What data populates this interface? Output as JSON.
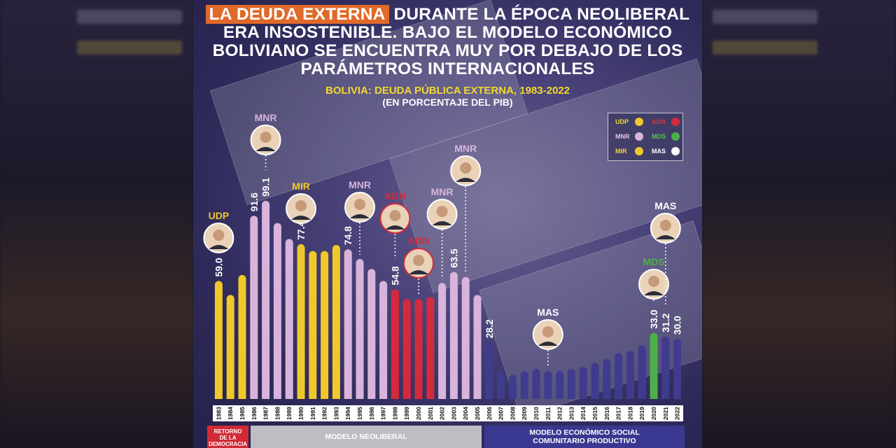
{
  "headline": {
    "highlight": "LA DEUDA EXTERNA",
    "line1_rest": " DURANTE LA ÉPOCA NEOLIBERAL",
    "line2": "ERA INSOSTENIBLE. BAJO EL MODELO ECONÓMICO",
    "line3": "BOLIVIANO SE ENCUENTRA MUY POR DEBAJO DE LOS",
    "line4": "PARÁMETROS INTERNACIONALES"
  },
  "colors": {
    "UDP": "#f0c82a",
    "MIR": "#f0c82a",
    "MNR": "#d8b4dc",
    "ADN": "#d42a3c",
    "MDS": "#4cb04a",
    "MAS": "#3f3c8e",
    "accent_orange": "#e06a2a",
    "title_yellow": "#f3d82c"
  },
  "legend": [
    {
      "name": "UDP",
      "dot": "#f0c82a",
      "text_color": "#f3d82c"
    },
    {
      "name": "ADN",
      "dot": "#d42a3c",
      "text_color": "#e0303f"
    },
    {
      "name": "MNR",
      "dot": "#d8b4dc",
      "text_color": "#e2c4e6"
    },
    {
      "name": "MDS",
      "dot": "#4cb04a",
      "text_color": "#56c256"
    },
    {
      "name": "MIR",
      "dot": "#f0c82a",
      "text_color": "#f3d82c"
    },
    {
      "name": "MAS",
      "dot": "#ffffff",
      "text_color": "#ffffff"
    }
  ],
  "eras": {
    "retorno": [
      "RETORNO",
      "DE LA",
      "DEMOCRACIA"
    ],
    "neoliberal": "MODELO NEOLIBERAL",
    "social": [
      "MODELO ECONÓMICO SOCIAL",
      "COMUNITARIO PRODUCTIVO"
    ]
  },
  "chart_data": {
    "type": "bar",
    "title": "BOLIVIA: DEUDA PÚBLICA EXTERNA, 1983-2022",
    "subtitle": "(EN PORCENTAJE DEL PIB)",
    "ylim": [
      0,
      105
    ],
    "categories": [
      "1983",
      "1984",
      "1985",
      "1986",
      "1987",
      "1988",
      "1989",
      "1990",
      "1991",
      "1992",
      "1993",
      "1994",
      "1995",
      "1996",
      "1997",
      "1998",
      "1999",
      "2000",
      "2001",
      "2002",
      "2003",
      "2004",
      "2005",
      "2006",
      "2007",
      "2008",
      "2009",
      "2010",
      "2011",
      "2012",
      "2013",
      "2014",
      "2015",
      "2016",
      "2017",
      "2018",
      "2019",
      "2020",
      "2021",
      "2022"
    ],
    "values": [
      59.0,
      52,
      62,
      91.6,
      99.1,
      88,
      80,
      77.4,
      74,
      74,
      77,
      74.8,
      70,
      65,
      59,
      54.8,
      50,
      50,
      51,
      58,
      63.5,
      61,
      52,
      28.2,
      14,
      12,
      14,
      15,
      14,
      14,
      15,
      16,
      18,
      20,
      23,
      24,
      27,
      33.0,
      31.2,
      30.0
    ],
    "party": [
      "UDP",
      "UDP",
      "UDP",
      "MNR",
      "MNR",
      "MNR",
      "MNR",
      "MIR",
      "MIR",
      "MIR",
      "MIR",
      "MNR",
      "MNR",
      "MNR",
      "MNR",
      "ADN",
      "ADN",
      "ADN",
      "ADN",
      "MNR",
      "MNR",
      "MNR",
      "MNR",
      "MAS",
      "MAS",
      "MAS",
      "MAS",
      "MAS",
      "MAS",
      "MAS",
      "MAS",
      "MAS",
      "MAS",
      "MAS",
      "MAS",
      "MAS",
      "MAS",
      "MDS",
      "MAS",
      "MAS"
    ],
    "data_labels": [
      {
        "year": "1983",
        "text": "59.0"
      },
      {
        "year": "1986",
        "text": "91.6"
      },
      {
        "year": "1987",
        "text": "99.1"
      },
      {
        "year": "1990",
        "text": "77.4"
      },
      {
        "year": "1994",
        "text": "74.8"
      },
      {
        "year": "1998",
        "text": "54.8"
      },
      {
        "year": "2003",
        "text": "63.5"
      },
      {
        "year": "2006",
        "text": "28.2"
      },
      {
        "year": "2020",
        "text": "33.0"
      },
      {
        "year": "2021",
        "text": "31.2"
      },
      {
        "year": "2022",
        "text": "30.0"
      }
    ],
    "annotations": [
      {
        "party": "UDP",
        "year": "1983"
      },
      {
        "party": "MNR",
        "year": "1987"
      },
      {
        "party": "MIR",
        "year": "1990"
      },
      {
        "party": "MNR",
        "year": "1995"
      },
      {
        "party": "ADN",
        "year": "1998"
      },
      {
        "party": "ADN",
        "year": "2000"
      },
      {
        "party": "MNR",
        "year": "2002"
      },
      {
        "party": "MNR",
        "year": "2004"
      },
      {
        "party": "MAS",
        "year": "2011"
      },
      {
        "party": "MDS",
        "year": "2020"
      },
      {
        "party": "MAS",
        "year": "2021"
      }
    ]
  }
}
